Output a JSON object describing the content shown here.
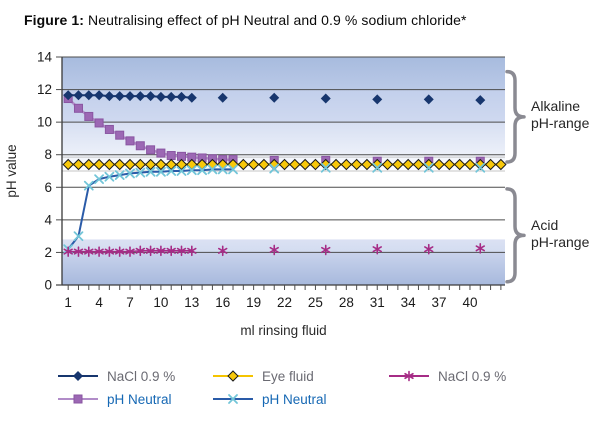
{
  "figure": {
    "title_prefix": "Figure 1:",
    "title_text": " Neutralising effect of pH Neutral and 0.9 % sodium chloride*"
  },
  "chart_data": {
    "type": "line",
    "title": "Figure 1: Neutralising effect of pH Neutral and 0.9 % sodium chloride*",
    "xlabel": "ml rinsing fluid",
    "ylabel": "pH value",
    "xlim": [
      0.4,
      43.4
    ],
    "ylim": [
      0,
      14
    ],
    "x_tick_labels": [
      1,
      4,
      7,
      10,
      13,
      16,
      19,
      22,
      25,
      28,
      31,
      34,
      37,
      40
    ],
    "x_minor_tick_step": 1,
    "y_tick_labels": [
      0,
      2,
      4,
      6,
      8,
      10,
      12,
      14
    ],
    "grid_ph": [
      14,
      12,
      10,
      8,
      6,
      4,
      2
    ],
    "grid_color": "#4c4c4c",
    "axis_color": "#3a3a3a",
    "faint_lines": {
      "ph": [
        7.85,
        7.0
      ],
      "color": "#c6c6c6"
    },
    "bands": [
      {
        "from": 14,
        "to": 12,
        "colors": [
          "#a7bbde",
          "#bac9e7"
        ]
      },
      {
        "from": 12,
        "to": 10,
        "colors": [
          "#c2cfeb",
          "#cfd9f0"
        ]
      },
      {
        "from": 10,
        "to": 8,
        "colors": [
          "#d7dff2",
          "#ecf0f9"
        ]
      },
      {
        "from": 8,
        "to": 6.95,
        "colors": [
          "#f0f3fa",
          "#ffffff"
        ]
      },
      {
        "from": 2.8,
        "to": 2,
        "colors": [
          "#dbe1f3",
          "#d3dcf0"
        ]
      },
      {
        "from": 2,
        "to": 0,
        "colors": [
          "#c9d3ec",
          "#a7b9dd"
        ]
      }
    ],
    "series": [
      {
        "id": "ph-neutral-alkaline",
        "name": "pH Neutral",
        "marker": "square",
        "marker_color": "#9c68b4",
        "marker_stroke": "#8a56a2",
        "line_color": "#b18cc8",
        "line_width": 2.5,
        "connect_gap": 1.5,
        "x": [
          1,
          2,
          3,
          4,
          5,
          6,
          7,
          8,
          9,
          10,
          11,
          12,
          13,
          14,
          15,
          16,
          17,
          21,
          26,
          31,
          36,
          41
        ],
        "y": [
          11.45,
          10.85,
          10.35,
          9.95,
          9.55,
          9.2,
          8.85,
          8.55,
          8.3,
          8.1,
          7.95,
          7.9,
          7.85,
          7.8,
          7.75,
          7.7,
          7.7,
          7.65,
          7.65,
          7.6,
          7.6,
          7.6
        ]
      },
      {
        "id": "nacl-alkaline",
        "name": "NaCl 0.9 %",
        "marker": "diamond",
        "marker_color": "#17366e",
        "marker_stroke": "none",
        "line_color": "#17366e",
        "line_width": 2,
        "connect_gap": 1.5,
        "x": [
          1,
          2,
          3,
          4,
          5,
          6,
          7,
          8,
          9,
          10,
          11,
          12,
          13,
          16,
          21,
          26,
          31,
          36,
          41
        ],
        "y": [
          11.65,
          11.65,
          11.65,
          11.65,
          11.6,
          11.6,
          11.6,
          11.6,
          11.6,
          11.55,
          11.55,
          11.55,
          11.5,
          11.5,
          11.5,
          11.45,
          11.4,
          11.4,
          11.35
        ]
      },
      {
        "id": "eye-fluid",
        "name": "Eye fluid",
        "marker": "diamond",
        "marker_color": "#f8c80a",
        "marker_stroke": "#1a1a1a",
        "line_color": "#f5c400",
        "line_width": 2.5,
        "connect_gap": 1.5,
        "x": [
          1,
          2,
          3,
          4,
          5,
          6,
          7,
          8,
          9,
          10,
          11,
          12,
          13,
          14,
          15,
          16,
          17,
          18,
          19,
          20,
          21,
          22,
          23,
          24,
          25,
          26,
          27,
          28,
          29,
          30,
          31,
          32,
          33,
          34,
          35,
          36,
          37,
          38,
          39,
          40,
          41,
          42,
          43
        ],
        "y": [
          7.4,
          7.4,
          7.4,
          7.4,
          7.4,
          7.4,
          7.4,
          7.4,
          7.4,
          7.4,
          7.4,
          7.4,
          7.4,
          7.4,
          7.4,
          7.4,
          7.4,
          7.4,
          7.4,
          7.4,
          7.4,
          7.4,
          7.4,
          7.4,
          7.4,
          7.4,
          7.4,
          7.4,
          7.4,
          7.4,
          7.4,
          7.4,
          7.4,
          7.4,
          7.4,
          7.4,
          7.4,
          7.4,
          7.4,
          7.4,
          7.4,
          7.4,
          7.4
        ]
      },
      {
        "id": "ph-neutral-acid",
        "name": "pH Neutral",
        "marker": "x",
        "marker_color": "#72c5d8",
        "marker_stroke": "#72c5d8",
        "line_color": "#2a5ba8",
        "line_width": 2,
        "connect_gap": 1.5,
        "x": [
          1,
          2,
          3,
          4,
          5,
          6,
          7,
          8,
          9,
          10,
          11,
          12,
          13,
          14,
          15,
          16,
          17,
          21,
          26,
          31,
          36,
          41
        ],
        "y": [
          2.2,
          3.0,
          6.1,
          6.5,
          6.65,
          6.75,
          6.85,
          6.9,
          6.95,
          6.95,
          7.0,
          7.0,
          7.05,
          7.05,
          7.1,
          7.1,
          7.1,
          7.15,
          7.2,
          7.2,
          7.2,
          7.2
        ]
      },
      {
        "id": "nacl-acid",
        "name": "NaCl 0.9 %",
        "marker": "star",
        "marker_color": "#a62c86",
        "marker_stroke": "#a62c86",
        "line_color": "#a62c86",
        "line_width": 1.5,
        "connect_gap": 1.5,
        "x": [
          1,
          2,
          3,
          4,
          5,
          6,
          7,
          8,
          9,
          10,
          11,
          12,
          13,
          16,
          21,
          26,
          31,
          36,
          41
        ],
        "y": [
          2.05,
          2.05,
          2.05,
          2.05,
          2.05,
          2.05,
          2.05,
          2.1,
          2.1,
          2.1,
          2.1,
          2.1,
          2.1,
          2.1,
          2.15,
          2.15,
          2.2,
          2.2,
          2.25
        ]
      }
    ],
    "annotations": [
      {
        "label": "Alkaline\npH-range",
        "brace_from_ph": 13.1,
        "brace_to_ph": 7.55,
        "brace_color": "#8a8a92"
      },
      {
        "label": "Acid\npH-range",
        "brace_from_ph": 5.9,
        "brace_to_ph": 0.2,
        "brace_color": "#8a8a92"
      }
    ],
    "legend_position": "bottom"
  },
  "legend": {
    "items": [
      {
        "label": "NaCl 0.9 %",
        "marker": "diamond",
        "marker_color": "#17366e",
        "marker_stroke": "none",
        "line_color": "#17366e",
        "label_color": "#6a6a72"
      },
      {
        "label": "Eye fluid",
        "marker": "diamond",
        "marker_color": "#f8c80a",
        "marker_stroke": "#1a1a1a",
        "line_color": "#f5c400",
        "label_color": "#6a6a72"
      },
      {
        "label": "NaCl 0.9 %",
        "marker": "star",
        "marker_color": "#a62c86",
        "marker_stroke": "#a62c86",
        "line_color": "#a62c86",
        "label_color": "#6a6a72"
      },
      {
        "label": "pH Neutral",
        "marker": "square",
        "marker_color": "#9c68b4",
        "marker_stroke": "#8a56a2",
        "line_color": "#b18cc8",
        "label_color": "#1668b4"
      },
      {
        "label": "pH Neutral",
        "marker": "x",
        "marker_color": "#72c5d8",
        "marker_stroke": "#72c5d8",
        "line_color": "#2a5ba8",
        "label_color": "#1668b4"
      }
    ]
  }
}
